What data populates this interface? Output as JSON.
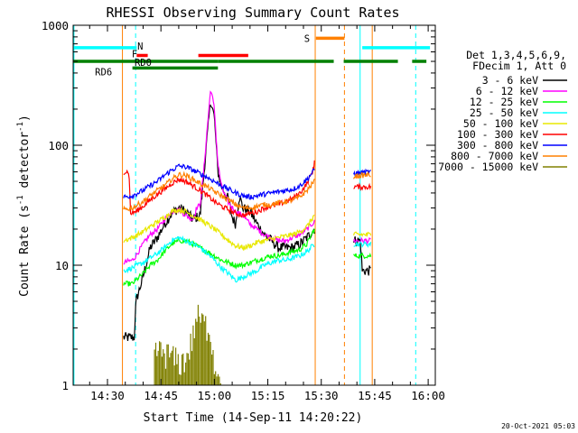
{
  "chart_data": {
    "type": "line",
    "title": "RHESSI Observing Summary Count Rates",
    "xlabel": "Start Time (14-Sep-11 14:20:22)",
    "ylabel_main": "Count Rate (s",
    "ylabel_sup1": "-1",
    "ylabel_mid": " detector",
    "ylabel_sup2": "-1",
    "ylabel_end": ")",
    "yscale": "log",
    "xlim": [
      20.37,
      122.0
    ],
    "ylim": [
      1,
      1000
    ],
    "xticks": [
      {
        "value": 30,
        "label": "14:30"
      },
      {
        "value": 45,
        "label": "14:45"
      },
      {
        "value": 60,
        "label": "15:00"
      },
      {
        "value": 75,
        "label": "15:15"
      },
      {
        "value": 90,
        "label": "15:30"
      },
      {
        "value": 105,
        "label": "15:45"
      },
      {
        "value": 120,
        "label": "16:00"
      }
    ],
    "yticks": [
      {
        "value": 1,
        "label": "1"
      },
      {
        "value": 10,
        "label": "10"
      },
      {
        "value": 100,
        "label": "100"
      },
      {
        "value": 1000,
        "label": "1000"
      }
    ],
    "legend_header_1": "Det 1,3,4,5,6,9,",
    "legend_header_2": "FDecim 1, Att 0",
    "footer_date": "20-Oct-2021 05:03",
    "flag_bars": [
      {
        "label": "N",
        "color": "#00ffff",
        "level": 650,
        "segments": [
          [
            20.4,
            38.2
          ],
          [
            101.5,
            120.5
          ]
        ]
      },
      {
        "label": "F",
        "color": "#ff0000",
        "level": 560,
        "segments": [
          [
            38.2,
            41.3
          ],
          [
            55.5,
            69.5
          ]
        ]
      },
      {
        "label": "RD0",
        "color": "#008000",
        "level": 500,
        "segments": [
          [
            20.4,
            61.0
          ],
          [
            61.0,
            93.5
          ],
          [
            96.3,
            111.5
          ],
          [
            115.5,
            119.5
          ]
        ]
      },
      {
        "label": "RD6",
        "color": "#008000",
        "level": 440,
        "segments": [
          [
            37.0,
            61.0
          ]
        ]
      },
      {
        "label": "S",
        "color": "#ff8000",
        "level": 780,
        "segments": [
          [
            88.5,
            96.5
          ]
        ]
      }
    ],
    "vlines": [
      {
        "x": 20.6,
        "color": "#00ffff",
        "dash": false
      },
      {
        "x": 37.9,
        "color": "#00ffff",
        "dash": true
      },
      {
        "x": 34.2,
        "color": "#ff8000",
        "dash": false
      },
      {
        "x": 88.3,
        "color": "#ff8000",
        "dash": false
      },
      {
        "x": 96.5,
        "color": "#ff8000",
        "dash": true
      },
      {
        "x": 100.9,
        "color": "#00ffff",
        "dash": false
      },
      {
        "x": 104.3,
        "color": "#ff8000",
        "dash": false
      },
      {
        "x": 116.5,
        "color": "#00ffff",
        "dash": true
      }
    ],
    "data_gaps": [
      [
        20.37,
        34.0
      ],
      [
        88.3,
        99.0
      ],
      [
        104.3,
        122.0
      ]
    ],
    "series": [
      {
        "name": "3 - 6 keV",
        "color": "#000000",
        "points": [
          [
            34.5,
            2.5
          ],
          [
            37.5,
            2.5
          ],
          [
            38,
            5
          ],
          [
            40,
            8
          ],
          [
            42,
            14
          ],
          [
            44,
            17
          ],
          [
            46,
            22
          ],
          [
            48,
            27
          ],
          [
            50,
            30
          ],
          [
            52,
            28
          ],
          [
            54,
            24
          ],
          [
            56,
            26
          ],
          [
            57,
            55
          ],
          [
            58,
            120
          ],
          [
            59,
            240
          ],
          [
            60,
            170
          ],
          [
            61,
            60
          ],
          [
            62,
            45
          ],
          [
            63,
            40
          ],
          [
            64,
            35
          ],
          [
            65,
            25
          ],
          [
            66,
            22
          ],
          [
            67,
            38
          ],
          [
            68,
            30
          ],
          [
            70,
            28
          ],
          [
            72,
            22
          ],
          [
            74,
            18
          ],
          [
            76,
            16
          ],
          [
            78,
            14
          ],
          [
            80,
            14
          ],
          [
            82,
            14
          ],
          [
            84,
            15
          ],
          [
            86,
            17
          ],
          [
            88,
            20
          ],
          [
            99,
            16
          ],
          [
            101,
            16
          ],
          [
            101.5,
            9
          ],
          [
            104,
            9
          ]
        ]
      },
      {
        "name": "6 - 12 keV",
        "color": "#ff00ff",
        "points": [
          [
            34.5,
            10.5
          ],
          [
            37,
            11
          ],
          [
            38,
            12
          ],
          [
            40,
            15
          ],
          [
            42,
            18
          ],
          [
            44,
            20
          ],
          [
            46,
            24
          ],
          [
            48,
            28
          ],
          [
            50,
            29
          ],
          [
            52,
            26
          ],
          [
            54,
            24
          ],
          [
            55,
            30
          ],
          [
            56,
            32
          ],
          [
            57,
            60
          ],
          [
            58,
            140
          ],
          [
            59,
            300
          ],
          [
            60,
            200
          ],
          [
            61,
            70
          ],
          [
            62,
            45
          ],
          [
            63,
            38
          ],
          [
            64,
            33
          ],
          [
            66,
            28
          ],
          [
            68,
            26
          ],
          [
            70,
            22
          ],
          [
            72,
            20
          ],
          [
            74,
            18
          ],
          [
            76,
            17
          ],
          [
            78,
            16
          ],
          [
            80,
            16
          ],
          [
            82,
            17
          ],
          [
            84,
            18
          ],
          [
            86,
            20
          ],
          [
            88,
            23
          ],
          [
            99,
            16
          ],
          [
            104,
            16
          ]
        ]
      },
      {
        "name": "12 - 25 keV",
        "color": "#00ff00",
        "points": [
          [
            34.5,
            7
          ],
          [
            37,
            7
          ],
          [
            38,
            7.5
          ],
          [
            40,
            8.5
          ],
          [
            42,
            10
          ],
          [
            44,
            11
          ],
          [
            46,
            13
          ],
          [
            48,
            15
          ],
          [
            50,
            16
          ],
          [
            52,
            16
          ],
          [
            54,
            15
          ],
          [
            56,
            14
          ],
          [
            58,
            13
          ],
          [
            60,
            12
          ],
          [
            62,
            11
          ],
          [
            64,
            10.5
          ],
          [
            66,
            10
          ],
          [
            68,
            10
          ],
          [
            70,
            10.5
          ],
          [
            72,
            11
          ],
          [
            74,
            11.5
          ],
          [
            76,
            12
          ],
          [
            78,
            12
          ],
          [
            80,
            12.5
          ],
          [
            82,
            13
          ],
          [
            84,
            13.5
          ],
          [
            86,
            15
          ],
          [
            88,
            20
          ],
          [
            99,
            12
          ],
          [
            104,
            12
          ]
        ]
      },
      {
        "name": "25 - 50 keV",
        "color": "#00ffff",
        "points": [
          [
            34.5,
            9
          ],
          [
            37,
            9.5
          ],
          [
            40,
            10.5
          ],
          [
            42,
            11.5
          ],
          [
            44,
            12.5
          ],
          [
            46,
            14
          ],
          [
            48,
            16
          ],
          [
            50,
            17
          ],
          [
            52,
            16
          ],
          [
            54,
            15
          ],
          [
            56,
            14
          ],
          [
            58,
            12.5
          ],
          [
            60,
            11
          ],
          [
            62,
            9.5
          ],
          [
            64,
            8.5
          ],
          [
            66,
            7.5
          ],
          [
            68,
            8
          ],
          [
            70,
            8.5
          ],
          [
            72,
            9
          ],
          [
            74,
            10
          ],
          [
            76,
            10.5
          ],
          [
            78,
            11
          ],
          [
            80,
            11
          ],
          [
            82,
            11.5
          ],
          [
            84,
            12
          ],
          [
            86,
            13
          ],
          [
            88,
            15
          ],
          [
            99,
            15
          ],
          [
            104,
            15
          ]
        ]
      },
      {
        "name": "50 - 100 keV",
        "color": "#e8e800",
        "points": [
          [
            34.5,
            16
          ],
          [
            37,
            17
          ],
          [
            40,
            19
          ],
          [
            42,
            21
          ],
          [
            44,
            23
          ],
          [
            46,
            25
          ],
          [
            48,
            28
          ],
          [
            50,
            29
          ],
          [
            52,
            28
          ],
          [
            54,
            26
          ],
          [
            56,
            24
          ],
          [
            58,
            22
          ],
          [
            60,
            20
          ],
          [
            62,
            18
          ],
          [
            64,
            16
          ],
          [
            66,
            14.5
          ],
          [
            68,
            14
          ],
          [
            70,
            14.5
          ],
          [
            72,
            15.5
          ],
          [
            74,
            16
          ],
          [
            76,
            16.5
          ],
          [
            78,
            17
          ],
          [
            80,
            17.5
          ],
          [
            82,
            18
          ],
          [
            84,
            19
          ],
          [
            86,
            21
          ],
          [
            88,
            26
          ],
          [
            99,
            18
          ],
          [
            104,
            18
          ]
        ]
      },
      {
        "name": "100 - 300 keV",
        "color": "#ff0000",
        "points": [
          [
            34.5,
            60
          ],
          [
            36,
            60
          ],
          [
            36.5,
            27
          ],
          [
            38,
            28
          ],
          [
            40,
            31
          ],
          [
            42,
            35
          ],
          [
            44,
            39
          ],
          [
            46,
            43
          ],
          [
            48,
            48
          ],
          [
            50,
            52
          ],
          [
            52,
            50
          ],
          [
            54,
            46
          ],
          [
            56,
            42
          ],
          [
            58,
            38
          ],
          [
            60,
            34
          ],
          [
            62,
            31
          ],
          [
            64,
            29
          ],
          [
            66,
            27
          ],
          [
            68,
            26
          ],
          [
            70,
            27
          ],
          [
            72,
            28
          ],
          [
            74,
            30
          ],
          [
            76,
            31
          ],
          [
            78,
            32
          ],
          [
            80,
            34
          ],
          [
            82,
            36
          ],
          [
            84,
            40
          ],
          [
            86,
            48
          ],
          [
            88,
            65
          ],
          [
            88.4,
            120
          ],
          [
            99,
            45
          ],
          [
            104,
            45
          ]
        ]
      },
      {
        "name": "300 - 800 keV",
        "color": "#0000ff",
        "points": [
          [
            34.5,
            37
          ],
          [
            37,
            38
          ],
          [
            40,
            42
          ],
          [
            42,
            46
          ],
          [
            44,
            50
          ],
          [
            46,
            56
          ],
          [
            48,
            62
          ],
          [
            50,
            67
          ],
          [
            52,
            66
          ],
          [
            54,
            62
          ],
          [
            56,
            58
          ],
          [
            58,
            54
          ],
          [
            60,
            50
          ],
          [
            62,
            46
          ],
          [
            64,
            43
          ],
          [
            66,
            40
          ],
          [
            68,
            38
          ],
          [
            70,
            37
          ],
          [
            72,
            38
          ],
          [
            74,
            39
          ],
          [
            76,
            40
          ],
          [
            78,
            41
          ],
          [
            80,
            42
          ],
          [
            82,
            43
          ],
          [
            84,
            46
          ],
          [
            86,
            52
          ],
          [
            88,
            62
          ],
          [
            99,
            58
          ],
          [
            104,
            60
          ]
        ]
      },
      {
        "name": "800 - 7000 keV",
        "color": "#ff8000",
        "points": [
          [
            34.5,
            29
          ],
          [
            37,
            30
          ],
          [
            40,
            34
          ],
          [
            42,
            38
          ],
          [
            44,
            42
          ],
          [
            46,
            46
          ],
          [
            48,
            52
          ],
          [
            50,
            57
          ],
          [
            52,
            56
          ],
          [
            54,
            52
          ],
          [
            56,
            48
          ],
          [
            58,
            45
          ],
          [
            60,
            41
          ],
          [
            62,
            38
          ],
          [
            64,
            35
          ],
          [
            66,
            32
          ],
          [
            68,
            30
          ],
          [
            70,
            30
          ],
          [
            72,
            31
          ],
          [
            74,
            32
          ],
          [
            76,
            32
          ],
          [
            78,
            33
          ],
          [
            80,
            34
          ],
          [
            82,
            35
          ],
          [
            84,
            37
          ],
          [
            86,
            42
          ],
          [
            88,
            50
          ],
          [
            99,
            55
          ],
          [
            104,
            57
          ]
        ]
      },
      {
        "name": "7000 - 15000 keV",
        "color": "#808000",
        "points": [
          [
            43,
            1.8
          ],
          [
            46,
            1.7
          ],
          [
            48,
            1.6
          ],
          [
            50,
            1.4
          ],
          [
            52,
            1.5
          ],
          [
            54,
            2.3
          ],
          [
            55,
            3.5
          ],
          [
            57,
            3.0
          ],
          [
            59,
            2.6
          ],
          [
            60,
            1.3
          ],
          [
            62,
            1.2
          ]
        ]
      }
    ]
  }
}
